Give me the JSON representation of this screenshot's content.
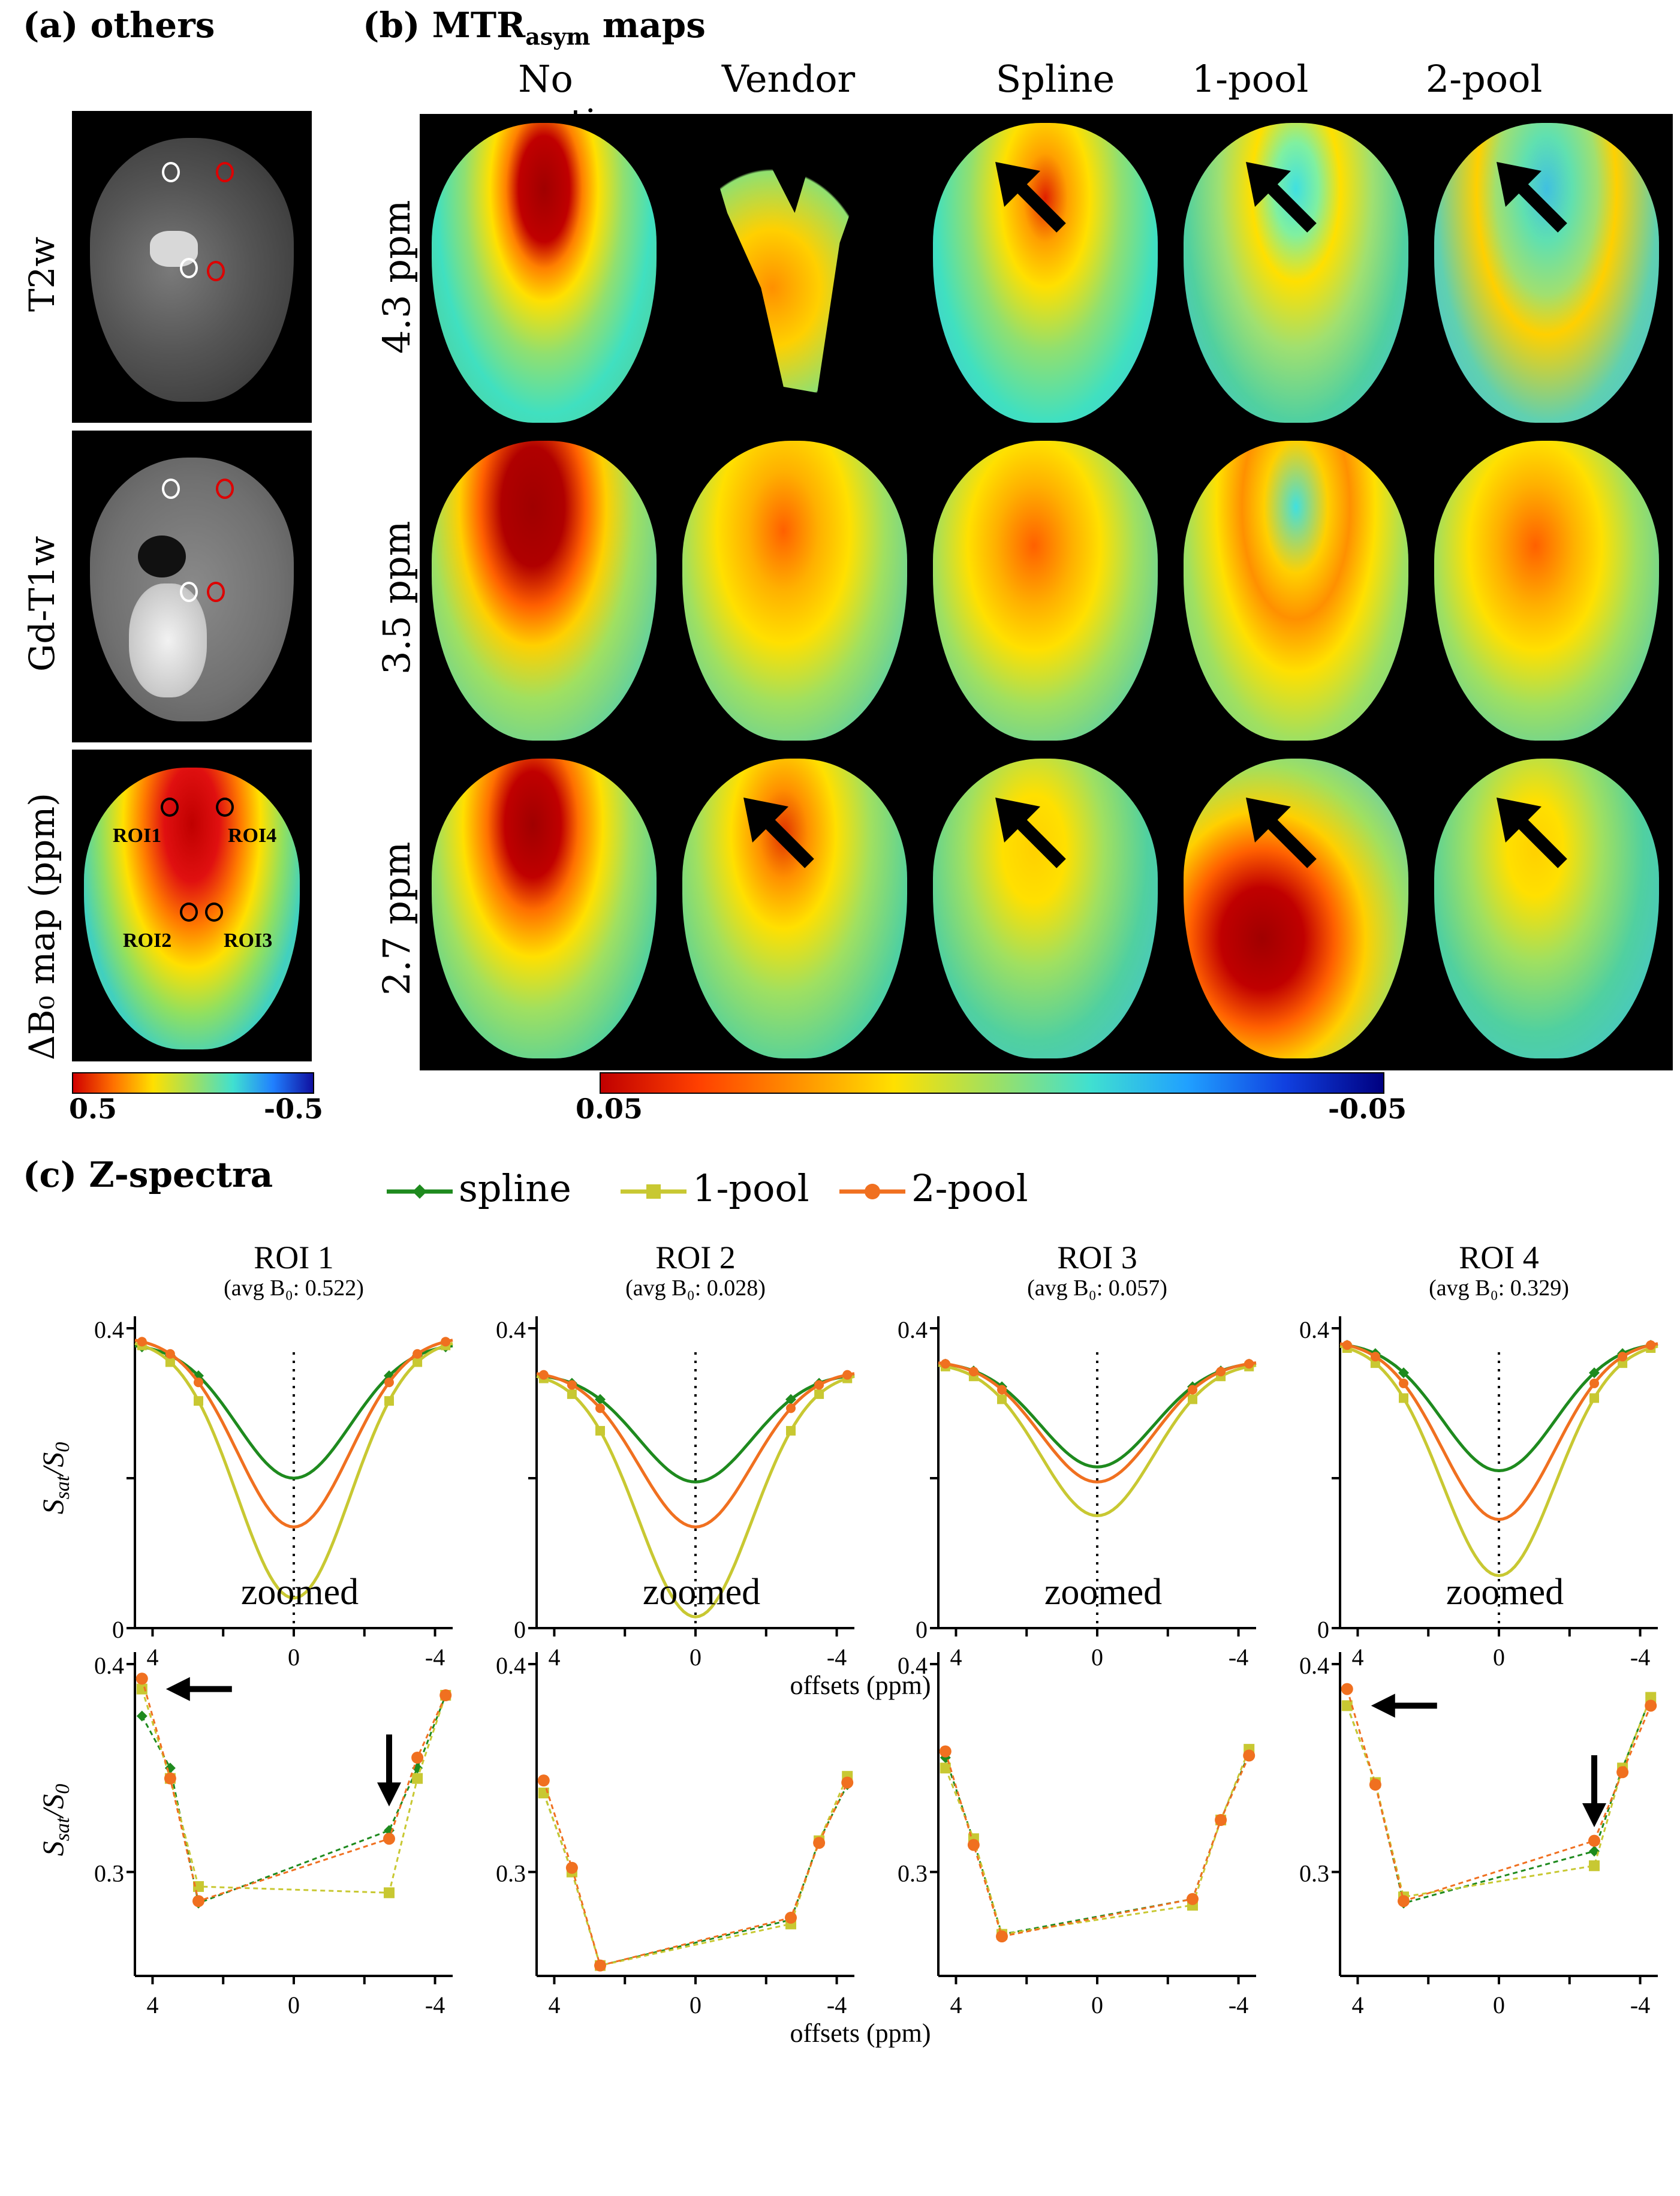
{
  "panel_a": {
    "title": "(a) others",
    "row_labels": [
      "T2w",
      "Gd-T1w",
      "ΔB₀ map (ppm)"
    ],
    "roi_labels": [
      "ROI1",
      "ROI4",
      "ROI2",
      "ROI3"
    ],
    "colorbar": {
      "min_label": "0.5",
      "max_label": "-0.5"
    }
  },
  "panel_b": {
    "title_prefix": "(b) MTR",
    "title_sub": "asym",
    "title_suffix": " maps",
    "columns": [
      "No correction",
      "Vendor",
      "Spline",
      "1-pool",
      "2-pool"
    ],
    "rows": [
      "4.3 ppm",
      "3.5 ppm",
      "2.7 ppm"
    ],
    "colorbar": {
      "min_label": "0.05",
      "max_label": "-0.05"
    }
  },
  "panel_c": {
    "title": "(c) Z-spectra",
    "xlabel": "offsets (ppm)",
    "ylabel": "Ssat/S0",
    "zoom_title": "zoomed"
  },
  "colors": {
    "spline": "#1e8a1e",
    "pool1": "#c8c832",
    "pool2": "#f07020",
    "arrow": "#000000"
  },
  "chart_data": [
    {
      "type": "line",
      "title": "ROI 1",
      "subtitle": "(avg B0: 0.522)",
      "xlabel": "offsets (ppm)",
      "ylabel": "Ssat/S0",
      "xlim": [
        4.5,
        -4.5
      ],
      "ylim": [
        0,
        0.4
      ],
      "xticks": [
        "4",
        "0",
        "-4"
      ],
      "yticks": [
        "0",
        "0.4"
      ],
      "legend": [
        "spline",
        "1-pool",
        "2-pool"
      ],
      "markers_x": [
        4.3,
        3.5,
        2.7,
        -2.7,
        -3.5,
        -4.3
      ],
      "series": [
        {
          "name": "spline",
          "values": [
            0.375,
            0.35,
            0.285,
            0.32,
            0.35,
            0.385
          ],
          "min": 0.2
        },
        {
          "name": "1-pool",
          "values": [
            0.388,
            0.345,
            0.293,
            0.29,
            0.345,
            0.385
          ],
          "min": 0.04
        },
        {
          "name": "2-pool",
          "values": [
            0.393,
            0.345,
            0.286,
            0.316,
            0.355,
            0.385
          ],
          "min": 0.135
        }
      ]
    },
    {
      "type": "line",
      "title": "ROI 2",
      "subtitle": "(avg B0: 0.028)",
      "xlabel": "offsets (ppm)",
      "ylabel": "Ssat/S0",
      "xlim": [
        4.5,
        -4.5
      ],
      "ylim": [
        0,
        0.4
      ],
      "xticks": [
        "4",
        "0",
        "-4"
      ],
      "yticks": [
        "0",
        "0.4"
      ],
      "legend": [
        "spline",
        "1-pool",
        "2-pool"
      ],
      "markers_x": [
        4.3,
        3.5,
        2.7,
        -2.7,
        -3.5,
        -4.3
      ],
      "series": [
        {
          "name": "spline",
          "values": [
            0.338,
            0.3,
            0.255,
            0.277,
            0.315,
            0.342
          ],
          "min": 0.195
        },
        {
          "name": "1-pool",
          "values": [
            0.338,
            0.3,
            0.255,
            0.275,
            0.315,
            0.346
          ],
          "min": 0.015
        },
        {
          "name": "2-pool",
          "values": [
            0.344,
            0.302,
            0.255,
            0.278,
            0.314,
            0.343
          ],
          "min": 0.135
        }
      ]
    },
    {
      "type": "line",
      "title": "ROI 3",
      "subtitle": "(avg B0: 0.057)",
      "xlabel": "offsets (ppm)",
      "ylabel": "Ssat/S0",
      "xlim": [
        4.5,
        -4.5
      ],
      "ylim": [
        0,
        0.4
      ],
      "xticks": [
        "4",
        "0",
        "-4"
      ],
      "yticks": [
        "0",
        "0.4"
      ],
      "legend": [
        "spline",
        "1-pool",
        "2-pool"
      ],
      "markers_x": [
        4.3,
        3.5,
        2.7,
        -2.7,
        -3.5,
        -4.3
      ],
      "series": [
        {
          "name": "spline",
          "values": [
            0.355,
            0.315,
            0.27,
            0.287,
            0.325,
            0.357
          ],
          "min": 0.215
        },
        {
          "name": "1-pool",
          "values": [
            0.35,
            0.316,
            0.27,
            0.284,
            0.325,
            0.359
          ],
          "min": 0.15
        },
        {
          "name": "2-pool",
          "values": [
            0.358,
            0.313,
            0.269,
            0.287,
            0.325,
            0.356
          ],
          "min": 0.195
        }
      ]
    },
    {
      "type": "line",
      "title": "ROI 4",
      "subtitle": "(avg B0: 0.329)",
      "xlabel": "offsets (ppm)",
      "ylabel": "Ssat/S0",
      "xlim": [
        4.5,
        -4.5
      ],
      "ylim": [
        0,
        0.4
      ],
      "xticks": [
        "4",
        "0",
        "-4"
      ],
      "yticks": [
        "0",
        "0.4"
      ],
      "legend": [
        "spline",
        "1-pool",
        "2-pool"
      ],
      "markers_x": [
        4.3,
        3.5,
        2.7,
        -2.7,
        -3.5,
        -4.3
      ],
      "series": [
        {
          "name": "spline",
          "values": [
            0.38,
            0.343,
            0.285,
            0.31,
            0.35,
            0.384
          ],
          "min": 0.21
        },
        {
          "name": "1-pool",
          "values": [
            0.38,
            0.343,
            0.288,
            0.303,
            0.35,
            0.384
          ],
          "min": 0.07
        },
        {
          "name": "2-pool",
          "values": [
            0.388,
            0.342,
            0.286,
            0.315,
            0.348,
            0.38
          ],
          "min": 0.145
        }
      ]
    }
  ],
  "zoom_ylim": [
    0.25,
    0.4
  ],
  "zoom_yticks": [
    "0.3",
    "0.4"
  ]
}
